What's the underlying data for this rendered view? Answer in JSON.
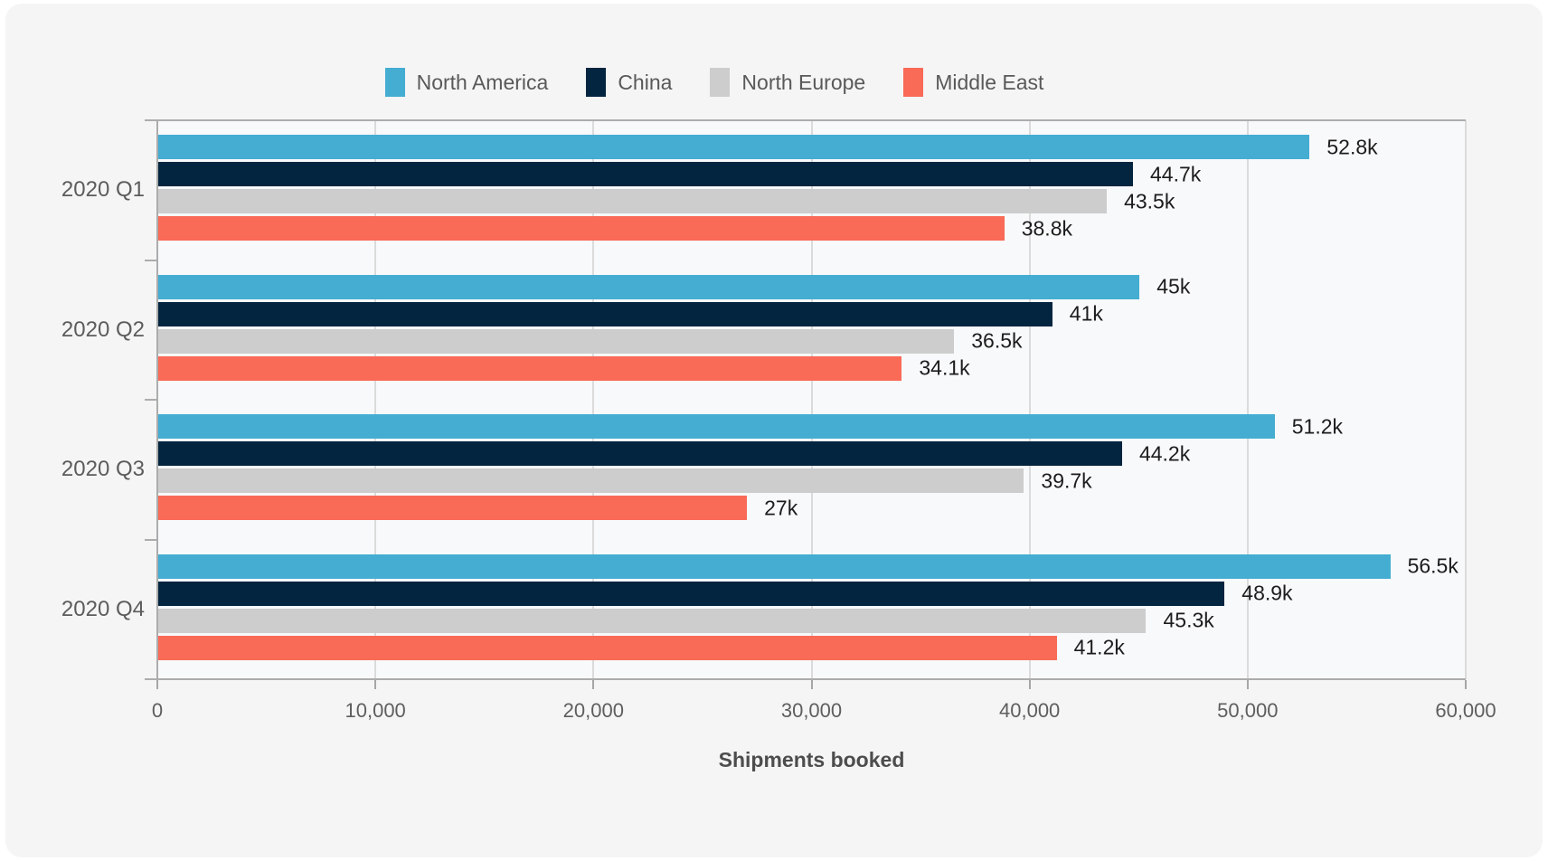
{
  "chart_data": {
    "type": "bar",
    "orientation": "horizontal",
    "xlabel": "Shipments booked",
    "categories": [
      "2020 Q1",
      "2020 Q2",
      "2020 Q3",
      "2020 Q4"
    ],
    "series": [
      {
        "name": "North America",
        "color": "#45add2",
        "values": [
          52800,
          45000,
          51200,
          56500
        ],
        "labels": [
          "52.8k",
          "45k",
          "51.2k",
          "56.5k"
        ]
      },
      {
        "name": "China",
        "color": "#042540",
        "values": [
          44700,
          41000,
          44200,
          48900
        ],
        "labels": [
          "44.7k",
          "41k",
          "44.2k",
          "48.9k"
        ]
      },
      {
        "name": "North Europe",
        "color": "#cdcdcd",
        "values": [
          43500,
          36500,
          39700,
          45300
        ],
        "labels": [
          "43.5k",
          "36.5k",
          "39.7k",
          "45.3k"
        ]
      },
      {
        "name": "Middle East",
        "color": "#f96a57",
        "values": [
          38800,
          34100,
          27000,
          41200
        ],
        "labels": [
          "38.8k",
          "34.1k",
          "27k",
          "41.2k"
        ]
      }
    ],
    "xlim": [
      0,
      60000
    ],
    "xticks": [
      0,
      10000,
      20000,
      30000,
      40000,
      50000,
      60000
    ],
    "xtick_labels": [
      "0",
      "10,000",
      "20,000",
      "30,000",
      "40,000",
      "50,000",
      "60,000"
    ],
    "grid": "vertical",
    "legend_position": "top"
  },
  "colors": {
    "card_background": "#f5f5f6",
    "plot_background": "#f8f9fa",
    "gridline": "#dbdbdb",
    "axis_line": "#acacac",
    "value_label_text": "#1c1c1c",
    "axis_text": "#5e5e5e"
  }
}
